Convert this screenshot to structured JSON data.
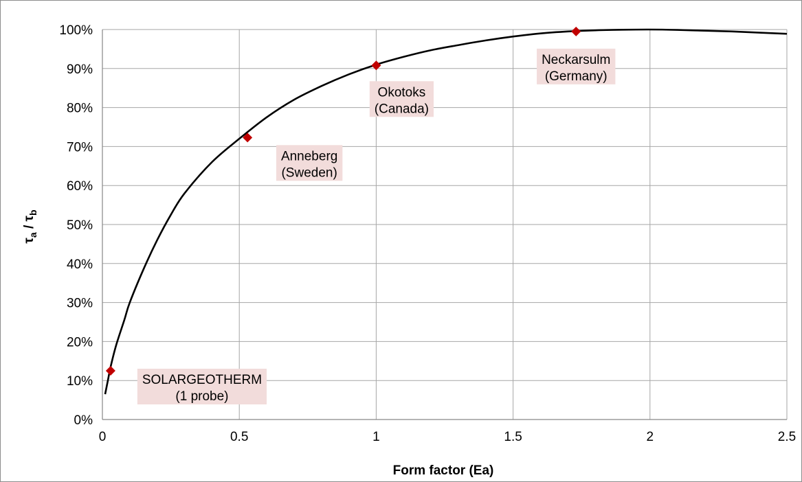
{
  "chart_data": {
    "type": "line",
    "title": "",
    "xlabel": "Form factor (Ea)",
    "ylabel": {
      "symbol": "τ",
      "sub_a": "a",
      "sep": " / ",
      "sub_b": "b"
    },
    "xlim": [
      0,
      2.5
    ],
    "ylim": [
      0,
      100
    ],
    "x_ticks": [
      "0",
      "0.5",
      "1",
      "1.5",
      "2",
      "2.5"
    ],
    "y_ticks": [
      "0%",
      "10%",
      "20%",
      "30%",
      "40%",
      "50%",
      "60%",
      "70%",
      "80%",
      "90%",
      "100%"
    ],
    "grid": true,
    "legend": "none",
    "curve": {
      "color": "#000000",
      "x": [
        0.01,
        0.02,
        0.03,
        0.05,
        0.08,
        0.1,
        0.15,
        0.2,
        0.25,
        0.3,
        0.4,
        0.5,
        0.6,
        0.7,
        0.8,
        0.9,
        1.0,
        1.1,
        1.2,
        1.3,
        1.4,
        1.5,
        1.6,
        1.7,
        1.8,
        1.9,
        2.0,
        2.1,
        2.2,
        2.3,
        2.4,
        2.5
      ],
      "y": [
        6.5,
        10.0,
        13.5,
        19.0,
        25.5,
        30.0,
        38.5,
        46.0,
        52.5,
        58.0,
        66.0,
        72.0,
        77.5,
        82.0,
        85.5,
        88.5,
        91.0,
        93.0,
        94.7,
        96.0,
        97.2,
        98.2,
        99.0,
        99.5,
        99.8,
        99.95,
        100.0,
        99.9,
        99.7,
        99.5,
        99.2,
        98.9
      ]
    },
    "points": [
      {
        "x": 0.03,
        "y": 12.5,
        "label1": "SOLARGEOTHERM",
        "label2": "(1 probe)"
      },
      {
        "x": 0.53,
        "y": 72.3,
        "label1": "Anneberg",
        "label2": "(Sweden)"
      },
      {
        "x": 1.0,
        "y": 90.8,
        "label1": "Okotoks",
        "label2": "(Canada)"
      },
      {
        "x": 1.73,
        "y": 99.5,
        "label1": "Neckarsulm",
        "label2": "(Germany)"
      }
    ],
    "colors": {
      "marker": "#c00000",
      "label_bg": "#f2dcdb",
      "grid": "#a6a6a6"
    }
  }
}
